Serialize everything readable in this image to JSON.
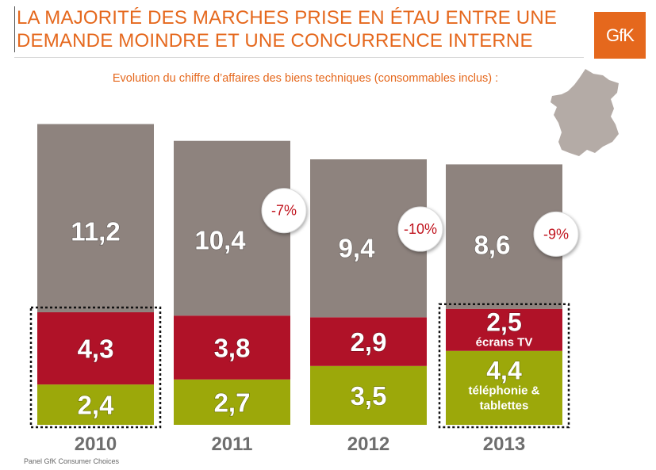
{
  "header": {
    "title_line1": "LA MAJORITÉ DES MARCHES PRISE EN ÉTAU ENTRE UNE",
    "title_line2": "DEMANDE MOINDRE ET UNE CONCURRENCE INTERNE",
    "logo_text": "GfK"
  },
  "footer": {
    "source": "Panel GfK  Consumer Choices"
  },
  "icons": {
    "map": "france-map-icon"
  },
  "colors": {
    "accent": "#e5681d",
    "grey_segment": "#8e837e",
    "red_segment": "#b01228",
    "green_segment": "#9ca80a",
    "badge_text": "#c0141e",
    "year_text": "#6e6e6e"
  },
  "chart_data": {
    "type": "bar",
    "stacked": true,
    "title": "Evolution du chiffre d’affaires des biens techniques (consommables inclus) :",
    "categories": [
      "2010",
      "2011",
      "2012",
      "2013"
    ],
    "series": [
      {
        "values": [
          2.4,
          2.7,
          3.5,
          4.4
        ],
        "labels": [
          "2,4",
          "2,7",
          "3,5",
          "4,4"
        ],
        "sublabels": [
          "",
          "",
          "",
          "téléphonie &|tablettes"
        ]
      },
      {
        "values": [
          4.3,
          3.8,
          2.9,
          2.5
        ],
        "labels": [
          "4,3",
          "3,8",
          "2,9",
          "2,5"
        ],
        "sublabels": [
          "",
          "",
          "",
          "écrans TV"
        ]
      },
      {
        "values": [
          11.2,
          10.4,
          9.4,
          8.6
        ],
        "labels": [
          "11,2",
          "10,4",
          "9,4",
          "8,6"
        ],
        "sublabels": [
          "",
          "",
          "",
          ""
        ]
      }
    ],
    "annotations": [
      "",
      "-7%",
      "-10%",
      "-9%"
    ],
    "highlighted_categories": [
      "2010",
      "2013"
    ],
    "ylim": [
      0,
      18
    ],
    "xlabel": "",
    "ylabel": "",
    "grid": false,
    "legend": "none"
  }
}
